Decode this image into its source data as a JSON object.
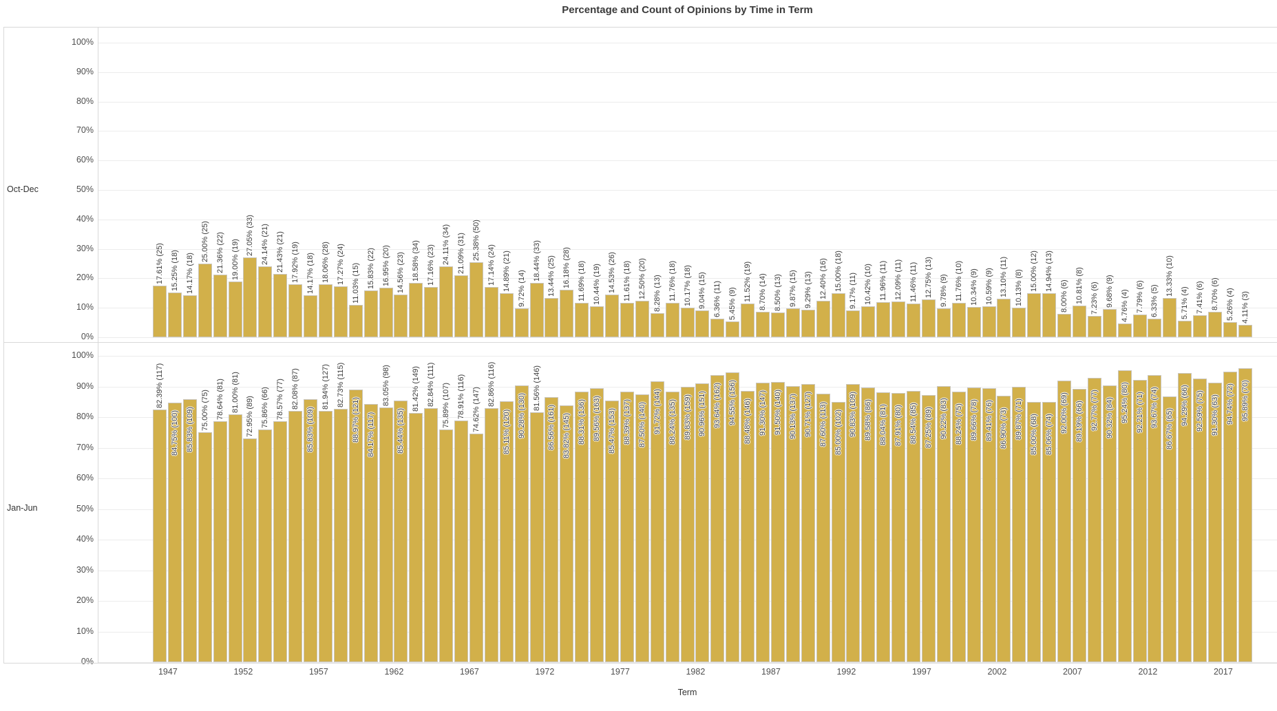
{
  "chart_data": {
    "type": "bar",
    "title": "Percentage and Count of Opinions by Time in Term",
    "xlabel": "Term",
    "ylim": [
      0,
      100
    ],
    "y_ticks": [
      0,
      10,
      20,
      30,
      40,
      50,
      60,
      70,
      80,
      90,
      100
    ],
    "y_tick_suffix": "%",
    "x_ticks": [
      1947,
      1952,
      1957,
      1962,
      1967,
      1972,
      1977,
      1982,
      1987,
      1992,
      1997,
      2002,
      2007,
      2012,
      2017
    ],
    "grid": "horizontal",
    "legend_position": "none",
    "label_format": "pct% (count)",
    "years": [
      1946,
      1947,
      1948,
      1949,
      1950,
      1951,
      1952,
      1953,
      1954,
      1955,
      1956,
      1957,
      1958,
      1959,
      1960,
      1961,
      1962,
      1963,
      1964,
      1965,
      1966,
      1967,
      1968,
      1969,
      1970,
      1971,
      1972,
      1973,
      1974,
      1975,
      1976,
      1977,
      1978,
      1979,
      1980,
      1981,
      1982,
      1983,
      1984,
      1985,
      1986,
      1987,
      1988,
      1989,
      1990,
      1991,
      1992,
      1993,
      1994,
      1995,
      1996,
      1997,
      1998,
      1999,
      2000,
      2001,
      2002,
      2003,
      2004,
      2005,
      2006,
      2007,
      2008,
      2009,
      2010,
      2011,
      2012,
      2013,
      2014,
      2015,
      2016,
      2017,
      2018
    ],
    "series": [
      {
        "name": "Oct-Dec",
        "pct": [
          17.61,
          15.25,
          14.17,
          25.0,
          21.36,
          19.0,
          27.05,
          24.14,
          21.43,
          17.92,
          14.17,
          18.06,
          17.27,
          11.03,
          15.83,
          16.95,
          14.56,
          18.58,
          17.16,
          24.11,
          21.09,
          25.38,
          17.14,
          14.89,
          9.72,
          18.44,
          13.44,
          16.18,
          11.69,
          10.44,
          14.53,
          11.61,
          12.5,
          8.28,
          11.76,
          10.17,
          9.04,
          6.36,
          5.45,
          11.52,
          8.7,
          8.5,
          9.87,
          9.29,
          12.4,
          15.0,
          9.17,
          10.42,
          11.96,
          12.09,
          11.46,
          12.75,
          9.78,
          11.76,
          10.34,
          10.59,
          13.1,
          10.13,
          15.0,
          14.94,
          8.0,
          10.81,
          7.23,
          9.68,
          4.76,
          7.79,
          6.33,
          13.33,
          5.71,
          7.41,
          8.7,
          5.26,
          4.11
        ],
        "count": [
          25,
          18,
          18,
          25,
          22,
          19,
          33,
          21,
          21,
          19,
          18,
          28,
          24,
          15,
          22,
          20,
          23,
          34,
          23,
          34,
          31,
          50,
          24,
          21,
          14,
          33,
          25,
          28,
          18,
          19,
          26,
          18,
          20,
          13,
          18,
          18,
          15,
          11,
          9,
          19,
          14,
          13,
          15,
          13,
          16,
          18,
          11,
          10,
          11,
          11,
          11,
          13,
          9,
          10,
          9,
          9,
          11,
          8,
          12,
          13,
          6,
          8,
          6,
          9,
          4,
          6,
          5,
          10,
          4,
          6,
          6,
          4,
          3
        ]
      },
      {
        "name": "Jan-Jun",
        "pct": [
          82.39,
          84.75,
          85.83,
          75.0,
          78.64,
          81.0,
          72.95,
          75.86,
          78.57,
          82.08,
          85.83,
          81.94,
          82.73,
          88.97,
          84.17,
          83.05,
          85.44,
          81.42,
          82.84,
          75.89,
          78.91,
          74.62,
          82.86,
          85.11,
          90.28,
          81.56,
          86.56,
          83.82,
          88.31,
          89.56,
          85.47,
          88.39,
          87.5,
          91.72,
          88.24,
          89.83,
          90.96,
          93.64,
          94.55,
          88.48,
          91.3,
          91.5,
          90.13,
          90.71,
          87.6,
          85.0,
          90.83,
          89.58,
          88.04,
          87.91,
          88.54,
          87.25,
          90.22,
          88.24,
          89.66,
          89.41,
          86.9,
          89.87,
          85.0,
          85.06,
          92.0,
          89.19,
          92.77,
          90.32,
          95.24,
          92.21,
          93.67,
          86.67,
          94.29,
          92.59,
          91.3,
          94.74,
          95.89
        ],
        "count": [
          117,
          100,
          109,
          75,
          81,
          81,
          89,
          66,
          77,
          87,
          109,
          127,
          115,
          121,
          117,
          98,
          135,
          149,
          111,
          107,
          116,
          147,
          116,
          120,
          130,
          146,
          161,
          145,
          136,
          163,
          153,
          137,
          140,
          144,
          135,
          159,
          151,
          162,
          156,
          146,
          147,
          140,
          137,
          127,
          113,
          102,
          109,
          86,
          81,
          80,
          85,
          89,
          83,
          75,
          78,
          76,
          73,
          71,
          68,
          74,
          69,
          66,
          77,
          84,
          80,
          71,
          74,
          65,
          66,
          75,
          63,
          72,
          70
        ]
      }
    ]
  },
  "colors": {
    "bar": "#d2b04a",
    "bar_border": "#c9c5bb",
    "grid": "#ececec",
    "frame": "#d8d8d8",
    "title": "#3a3a3a",
    "tick": "#4e4e4e",
    "bar_label": "#3c3c3c"
  }
}
